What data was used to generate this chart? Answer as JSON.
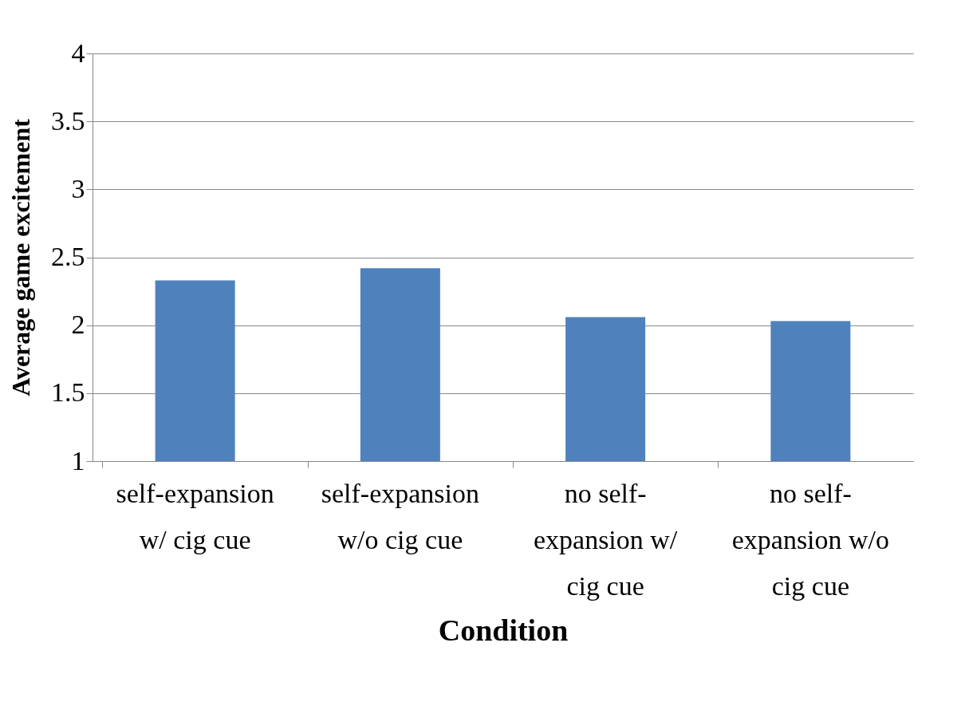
{
  "chart_data": {
    "type": "bar",
    "xlabel": "Condition",
    "ylabel": "Average game excitement",
    "categories": [
      "self-expansion w/ cig cue",
      "self-expansion w/o cig cue",
      "no self-expansion w/ cig cue",
      "no self-expansion w/o cig cue"
    ],
    "values": [
      2.33,
      2.42,
      2.06,
      2.03
    ],
    "color": "#4f81bd",
    "ylim": [
      1,
      4
    ],
    "yticks": [
      1,
      1.5,
      2,
      2.5,
      3,
      3.5,
      4
    ],
    "grid": "y"
  }
}
